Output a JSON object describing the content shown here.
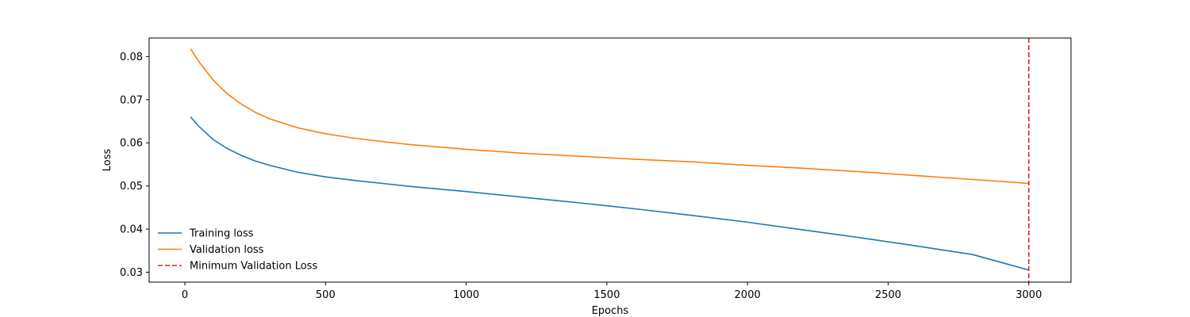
{
  "chart_data": {
    "type": "line",
    "title": "",
    "xlabel": "Epochs",
    "ylabel": "Loss",
    "xlim": [
      -127,
      3150
    ],
    "ylim": [
      0.0277,
      0.0843
    ],
    "xticks": [
      0,
      500,
      1000,
      1500,
      2000,
      2500,
      3000
    ],
    "yticks": [
      0.03,
      0.04,
      0.05,
      0.06,
      0.07,
      0.08
    ],
    "xtick_labels": [
      "0",
      "500",
      "1000",
      "1500",
      "2000",
      "2500",
      "3000"
    ],
    "ytick_labels": [
      "0.03",
      "0.04",
      "0.05",
      "0.06",
      "0.07",
      "0.08"
    ],
    "grid": false,
    "legend_position": "lower-left",
    "series": [
      {
        "name": "Training loss",
        "color": "#1f77b4",
        "style": "solid",
        "x": [
          20,
          50,
          100,
          150,
          200,
          250,
          300,
          400,
          500,
          600,
          700,
          800,
          1000,
          1200,
          1400,
          1600,
          1800,
          2000,
          2200,
          2400,
          2600,
          2800,
          3000
        ],
        "y": [
          0.066,
          0.0638,
          0.0608,
          0.0587,
          0.0571,
          0.0558,
          0.0548,
          0.0532,
          0.0521,
          0.0513,
          0.0506,
          0.0499,
          0.0487,
          0.0474,
          0.0461,
          0.0447,
          0.0432,
          0.0416,
          0.0398,
          0.038,
          0.0361,
          0.0341,
          0.0305
        ]
      },
      {
        "name": "Validation loss",
        "color": "#ff7f0e",
        "style": "solid",
        "x": [
          20,
          50,
          100,
          150,
          200,
          250,
          300,
          400,
          500,
          600,
          700,
          800,
          1000,
          1200,
          1400,
          1600,
          1800,
          2000,
          2200,
          2400,
          2600,
          2800,
          3000
        ],
        "y": [
          0.0818,
          0.0788,
          0.0746,
          0.0714,
          0.069,
          0.0671,
          0.0656,
          0.0635,
          0.0621,
          0.0611,
          0.0603,
          0.0596,
          0.0585,
          0.0576,
          0.0569,
          0.0562,
          0.0556,
          0.0548,
          0.0541,
          0.0533,
          0.0524,
          0.0515,
          0.0506
        ]
      }
    ],
    "vlines": [
      {
        "name": "Minimum Validation Loss",
        "x": 3000,
        "color": "#d62728",
        "style": "dashed"
      }
    ]
  }
}
